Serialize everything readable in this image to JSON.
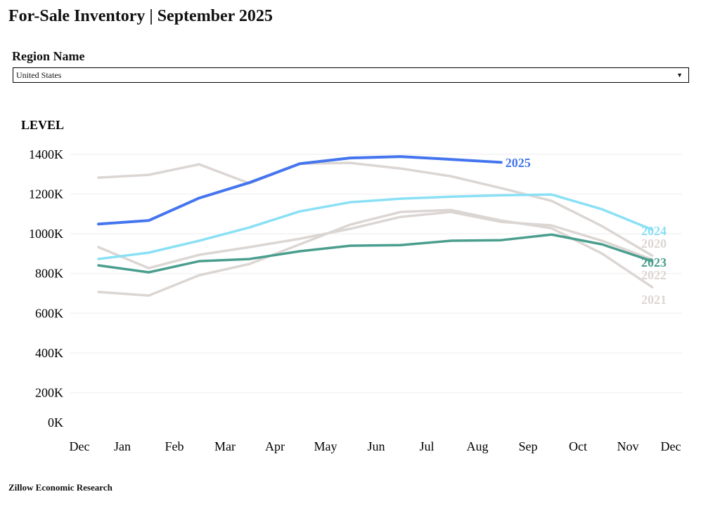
{
  "title": "For-Sale Inventory | September 2025",
  "filter": {
    "label": "Region Name",
    "value": "United States"
  },
  "footer": "Zillow Economic Research",
  "chart_data": {
    "type": "line",
    "ylabel": "LEVEL",
    "ylim": [
      0,
      1400
    ],
    "yticks": [
      "0K",
      "200K",
      "400K",
      "600K",
      "800K",
      "1000K",
      "1200K",
      "1400K"
    ],
    "xticks": [
      "Dec",
      "Jan",
      "Feb",
      "Mar",
      "Apr",
      "May",
      "Jun",
      "Jul",
      "Aug",
      "Sep",
      "Oct",
      "Nov",
      "Dec"
    ],
    "grid": true,
    "series": [
      {
        "name": "2020",
        "color": "#dcd6d3",
        "values": [
          1283,
          1297,
          1350,
          1254,
          1353,
          1357,
          1329,
          1290,
          1230,
          1166,
          1039,
          890
        ]
      },
      {
        "name": "2021",
        "color": "#dcd6d3",
        "values": [
          707,
          689,
          791,
          848,
          947,
          1046,
          1110,
          1120,
          1067,
          1028,
          901,
          731
        ]
      },
      {
        "name": "2022",
        "color": "#dcd6d3",
        "values": [
          933,
          827,
          894,
          933,
          975,
          1025,
          1085,
          1110,
          1060,
          1042,
          965,
          870
        ]
      },
      {
        "name": "2023",
        "color": "#4a9e8e",
        "values": [
          841,
          806,
          862,
          873,
          912,
          940,
          943,
          965,
          968,
          996,
          947,
          862
        ]
      },
      {
        "name": "2024",
        "color": "#8ae0f5",
        "values": [
          873,
          905,
          965,
          1032,
          1113,
          1159,
          1177,
          1187,
          1194,
          1198,
          1124,
          1021
        ]
      },
      {
        "name": "2025",
        "color": "#4475ef",
        "values": [
          1049,
          1067,
          1180,
          1258,
          1353,
          1382,
          1389,
          1375,
          1360
        ]
      }
    ]
  }
}
